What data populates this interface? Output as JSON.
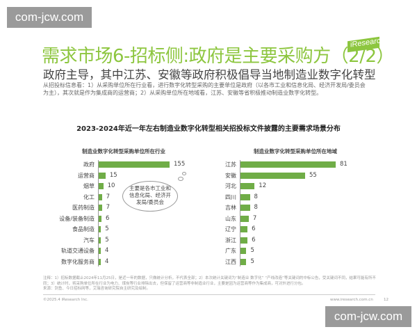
{
  "watermark": "com-jcw.com",
  "title": "需求市场6-招标侧:政府是主要采购方（2/2）",
  "logo": "iResearch",
  "subtitle": "政府主导，其中江苏、安徽等政府积极倡导当地制造业数字化转型",
  "description": "从招投标信息看：1）从采购单位所在行业看，进行数字化转型采购的主要单位是政府（以各市工业和信息化局、经济开发局/委员会为主），其次就是作为集成商的运营商；2）从采购单位所在地域看，江苏、安徽等省积极推动制造业数字化转型。",
  "chart_title": "2023-2024年近一年左右制造业数字化转型相关招投标文件披露的主要需求场景分布",
  "callout": "主要是各市工业和信息化局、经济开发局/委员会",
  "chart_data": [
    {
      "type": "bar",
      "orientation": "horizontal",
      "title": "制造业数字化转型采购单位所在行业",
      "categories": [
        "政府",
        "运营商",
        "烟草",
        "化工",
        "医药制造",
        "设备/装备制造",
        "食品制造",
        "汽车",
        "轨道交通设备",
        "数字化服务商"
      ],
      "values": [
        155,
        15,
        10,
        7,
        7,
        6,
        5,
        5,
        4,
        4
      ],
      "color": "#70ad47"
    },
    {
      "type": "bar",
      "orientation": "horizontal",
      "title": "制造业数字化转型采购单位所在地域",
      "categories": [
        "江苏",
        "安徽",
        "河北",
        "四川",
        "吉林",
        "山东",
        "辽宁",
        "浙江",
        "广东",
        "江西"
      ],
      "values": [
        81,
        55,
        12,
        8,
        8,
        7,
        6,
        6,
        5,
        5
      ],
      "color": "#70ad47"
    }
  ],
  "note": "注释：1）招标数据截止2024年11月25日，是近一年的数据，只做统计分析，不代表全部；2）本次统计关键词为“制造业 数字化” “产线改造”等关键词的中标公告，受关键词不同，结果可能有所不同；3）统计时，将采购单位所在行业为电力、煤炭等行业排除出去，但保留了运营商等非制造业行业，主要是因为运营商等作为集成商，可对外进行分包。",
  "source": "来源：剑鱼、今日招标网等，艾瑞咨询研究院自主研究及绘制。",
  "copyright": "©2025.4 iResearch Inc.",
  "website": "www.iresearch.com.cn",
  "page": "12"
}
